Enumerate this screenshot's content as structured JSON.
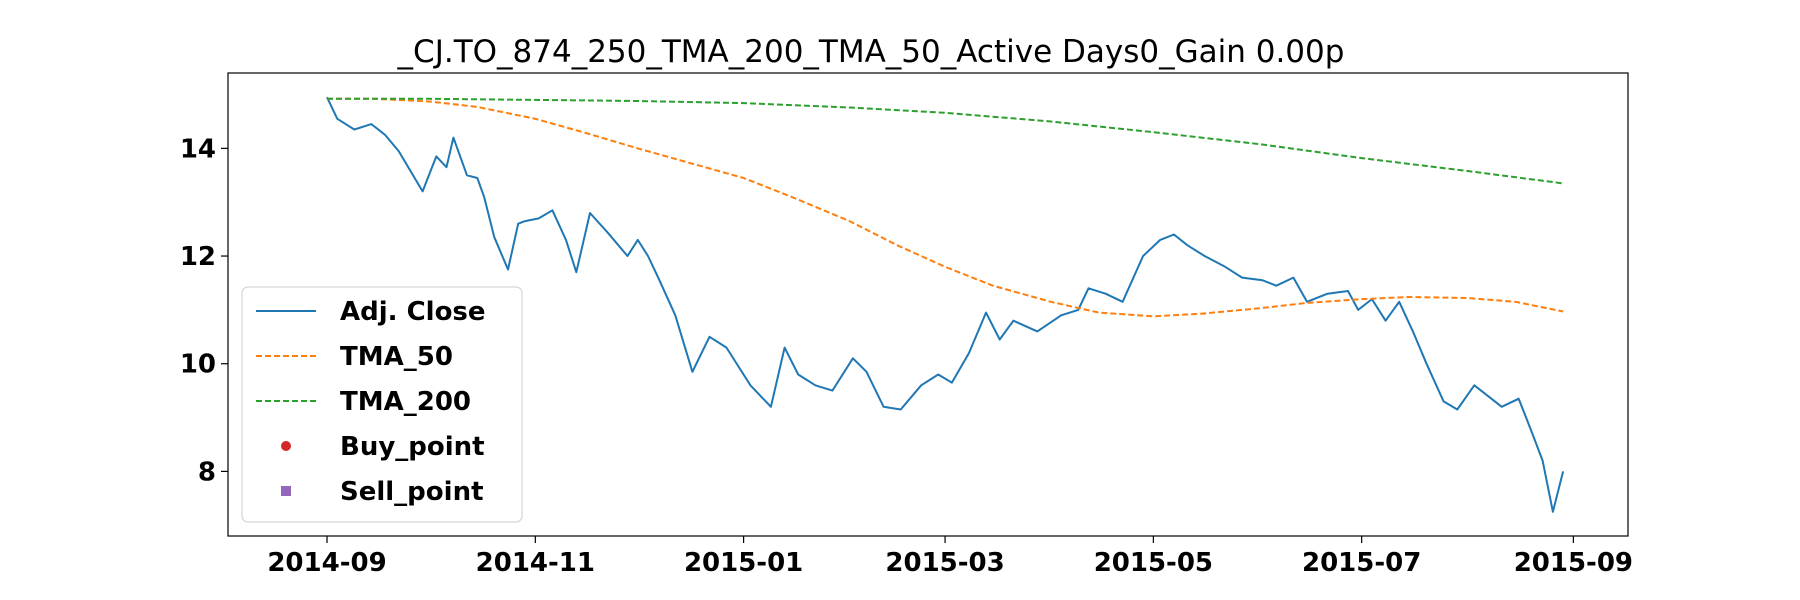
{
  "chart_data": {
    "type": "line",
    "title": "_CJ.TO_874_250_TMA_200_TMA_50_Active Days0_Gain   0.00p",
    "xlabel": "",
    "ylabel": "",
    "x_range": [
      "2014-08-03",
      "2015-09-17"
    ],
    "ylim": [
      6.8,
      15.4
    ],
    "grid": false,
    "legend_position": "left",
    "x_ticks": [
      "2014-09",
      "2014-11",
      "2015-01",
      "2015-03",
      "2015-05",
      "2015-07",
      "2015-09"
    ],
    "y_ticks": [
      8,
      10,
      12,
      14
    ],
    "series": [
      {
        "name": "Adj. Close",
        "color": "#1f77b4",
        "style": "solid",
        "x": [
          "2014-09-01",
          "2014-09-04",
          "2014-09-09",
          "2014-09-14",
          "2014-09-18",
          "2014-09-22",
          "2014-09-29",
          "2014-10-03",
          "2014-10-06",
          "2014-10-08",
          "2014-10-12",
          "2014-10-15",
          "2014-10-17",
          "2014-10-20",
          "2014-10-24",
          "2014-10-27",
          "2014-10-29",
          "2014-11-02",
          "2014-11-06",
          "2014-11-10",
          "2014-11-13",
          "2014-11-17",
          "2014-11-22",
          "2014-11-28",
          "2014-12-01",
          "2014-12-04",
          "2014-12-07",
          "2014-12-12",
          "2014-12-17",
          "2014-12-22",
          "2014-12-27",
          "2015-01-03",
          "2015-01-09",
          "2015-01-13",
          "2015-01-17",
          "2015-01-22",
          "2015-01-27",
          "2015-02-02",
          "2015-02-06",
          "2015-02-11",
          "2015-02-16",
          "2015-02-22",
          "2015-02-27",
          "2015-03-03",
          "2015-03-08",
          "2015-03-13",
          "2015-03-17",
          "2015-03-21",
          "2015-03-28",
          "2015-04-04",
          "2015-04-09",
          "2015-04-12",
          "2015-04-17",
          "2015-04-22",
          "2015-04-28",
          "2015-05-03",
          "2015-05-07",
          "2015-05-11",
          "2015-05-16",
          "2015-05-22",
          "2015-05-27",
          "2015-06-02",
          "2015-06-06",
          "2015-06-11",
          "2015-06-15",
          "2015-06-21",
          "2015-06-27",
          "2015-06-30",
          "2015-07-04",
          "2015-07-08",
          "2015-07-12",
          "2015-07-16",
          "2015-07-20",
          "2015-07-25",
          "2015-07-29",
          "2015-08-03",
          "2015-08-08",
          "2015-08-11",
          "2015-08-16",
          "2015-08-20",
          "2015-08-23",
          "2015-08-26",
          "2015-08-29"
        ],
        "y": [
          14.95,
          14.55,
          14.35,
          14.45,
          14.25,
          13.95,
          13.2,
          13.85,
          13.65,
          14.2,
          13.5,
          13.45,
          13.1,
          12.35,
          11.75,
          12.6,
          12.65,
          12.7,
          12.85,
          12.3,
          11.7,
          12.8,
          12.45,
          12.0,
          12.3,
          12.0,
          11.6,
          10.9,
          9.85,
          10.5,
          10.3,
          9.6,
          9.2,
          10.3,
          9.8,
          9.6,
          9.5,
          10.1,
          9.85,
          9.2,
          9.15,
          9.6,
          9.8,
          9.65,
          10.2,
          10.95,
          10.45,
          10.8,
          10.6,
          10.9,
          11.0,
          11.4,
          11.3,
          11.15,
          12.0,
          12.3,
          12.4,
          12.2,
          12.0,
          11.8,
          11.6,
          11.55,
          11.45,
          11.6,
          11.15,
          11.3,
          11.35,
          11.0,
          11.2,
          10.8,
          11.15,
          10.6,
          10.0,
          9.3,
          9.15,
          9.6,
          9.35,
          9.2,
          9.35,
          8.7,
          8.2,
          7.25,
          8.0
        ]
      },
      {
        "name": "TMA_50",
        "color": "#ff7f0e",
        "style": "dashed",
        "x": [
          "2014-09-01",
          "2014-09-15",
          "2014-10-01",
          "2014-10-15",
          "2014-11-01",
          "2014-11-15",
          "2014-12-01",
          "2014-12-15",
          "2015-01-01",
          "2015-01-15",
          "2015-02-01",
          "2015-02-15",
          "2015-03-01",
          "2015-03-15",
          "2015-04-01",
          "2015-04-15",
          "2015-05-01",
          "2015-05-15",
          "2015-06-01",
          "2015-06-15",
          "2015-07-01",
          "2015-07-15",
          "2015-08-01",
          "2015-08-15",
          "2015-08-29"
        ],
        "y": [
          14.92,
          14.92,
          14.87,
          14.77,
          14.55,
          14.3,
          14.0,
          13.75,
          13.45,
          13.1,
          12.65,
          12.2,
          11.8,
          11.45,
          11.15,
          10.95,
          10.88,
          10.93,
          11.03,
          11.13,
          11.2,
          11.24,
          11.22,
          11.15,
          10.97
        ]
      },
      {
        "name": "TMA_200",
        "color": "#2ca02c",
        "style": "dashed",
        "x": [
          "2014-09-01",
          "2014-10-01",
          "2014-11-01",
          "2014-12-01",
          "2015-01-01",
          "2015-02-01",
          "2015-03-01",
          "2015-04-01",
          "2015-05-01",
          "2015-06-01",
          "2015-07-01",
          "2015-08-01",
          "2015-08-29"
        ],
        "y": [
          14.92,
          14.92,
          14.9,
          14.88,
          14.84,
          14.76,
          14.66,
          14.5,
          14.3,
          14.08,
          13.82,
          13.58,
          13.35
        ]
      },
      {
        "name": "Buy_point",
        "color": "#d62728",
        "style": "marker-circle",
        "x": [],
        "y": []
      },
      {
        "name": "Sell_point",
        "color": "#9467bd",
        "style": "marker-square",
        "x": [],
        "y": []
      }
    ]
  }
}
